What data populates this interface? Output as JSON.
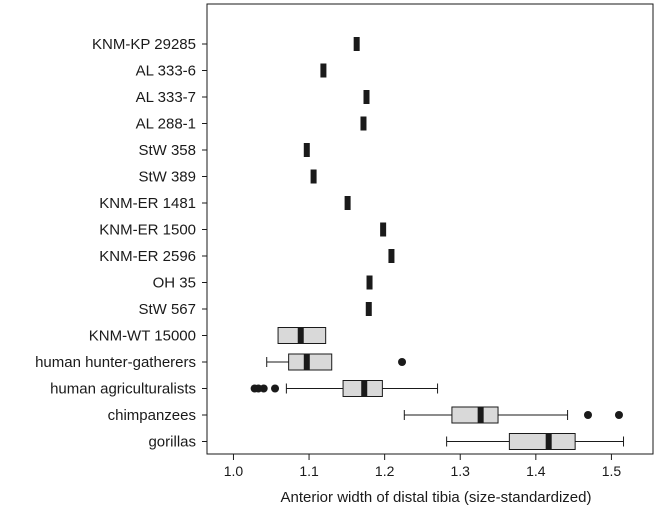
{
  "chart_data": {
    "type": "boxplot",
    "title": "",
    "xlabel": "Anterior width of distal tibia (size-standardized)",
    "ylabel": "",
    "xlim": [
      0.965,
      1.555
    ],
    "xticks": [
      "1.0",
      "1.1",
      "1.2",
      "1.3",
      "1.4",
      "1.5"
    ],
    "grid": false,
    "legend": "none",
    "colors": {
      "box_fill": "#d9d9d9",
      "stroke": "#1a1a1a",
      "median": "#1a1a1a"
    },
    "categories": [
      "KNM-KP 29285",
      "AL 333-6",
      "AL 333-7",
      "AL 288-1",
      "StW 358",
      "StW 389",
      "KNM-ER 1481",
      "KNM-ER 1500",
      "KNM-ER 2596",
      "OH 35",
      "StW 567",
      "KNM-WT 15000",
      "human hunter-gatherers",
      "human agriculturalists",
      "chimpanzees",
      "gorillas"
    ],
    "specimens": [
      {
        "name": "KNM-KP 29285",
        "value": 1.163
      },
      {
        "name": "AL 333-6",
        "value": 1.119
      },
      {
        "name": "AL 333-7",
        "value": 1.176
      },
      {
        "name": "AL 288-1",
        "value": 1.172
      },
      {
        "name": "StW 358",
        "value": 1.097
      },
      {
        "name": "StW 389",
        "value": 1.106
      },
      {
        "name": "KNM-ER 1481",
        "value": 1.151
      },
      {
        "name": "KNM-ER 1500",
        "value": 1.198
      },
      {
        "name": "KNM-ER 2596",
        "value": 1.209
      },
      {
        "name": "OH 35",
        "value": 1.18
      },
      {
        "name": "StW 567",
        "value": 1.179
      }
    ],
    "boxes": [
      {
        "name": "KNM-WT 15000",
        "q1": 1.059,
        "median": 1.089,
        "q3": 1.122,
        "whisker_low": null,
        "whisker_high": null,
        "outliers": []
      },
      {
        "name": "human hunter-gatherers",
        "q1": 1.073,
        "median": 1.097,
        "q3": 1.13,
        "whisker_low": 1.044,
        "whisker_high": null,
        "outliers": [
          1.223
        ]
      },
      {
        "name": "human agriculturalists",
        "q1": 1.145,
        "median": 1.173,
        "q3": 1.197,
        "whisker_low": 1.07,
        "whisker_high": 1.27,
        "outliers": [
          1.028,
          1.033,
          1.04,
          1.055
        ]
      },
      {
        "name": "chimpanzees",
        "q1": 1.289,
        "median": 1.327,
        "q3": 1.35,
        "whisker_low": 1.226,
        "whisker_high": 1.442,
        "outliers": [
          1.469,
          1.51
        ]
      },
      {
        "name": "gorillas",
        "q1": 1.365,
        "median": 1.417,
        "q3": 1.452,
        "whisker_low": 1.282,
        "whisker_high": 1.516,
        "outliers": []
      }
    ]
  }
}
